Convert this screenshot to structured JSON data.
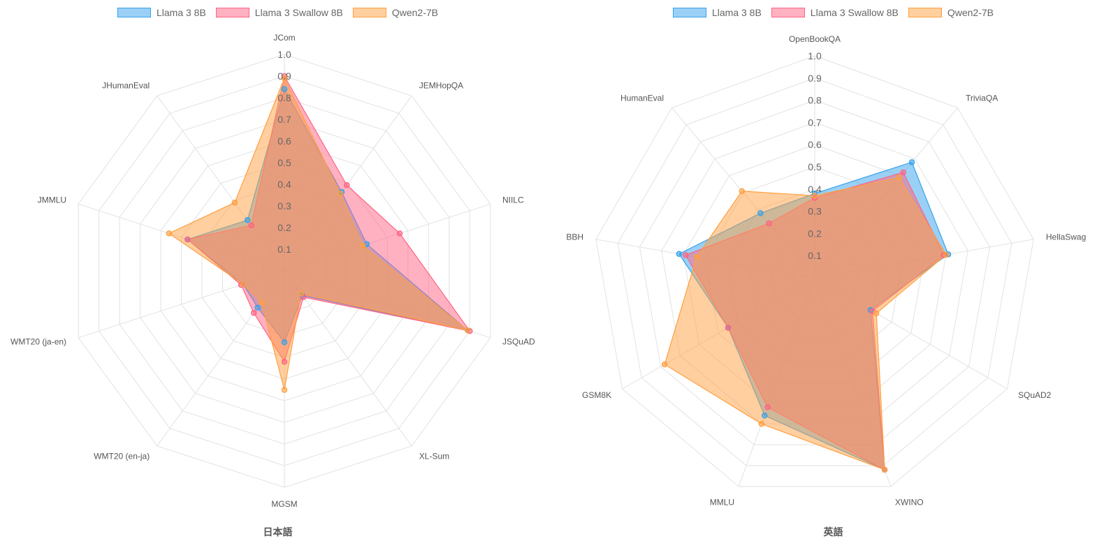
{
  "legend": [
    {
      "name": "Llama 3 8B",
      "fill": "#9ad0f5",
      "stroke": "#36a2eb"
    },
    {
      "name": "Llama 3 Swallow 8B",
      "fill": "#ffb1c1",
      "stroke": "#ff6384"
    },
    {
      "name": "Qwen2-7B",
      "fill": "#ffcf9f",
      "stroke": "#ff9f40"
    }
  ],
  "colors": {
    "llama": {
      "fill": "rgba(54,162,235,0.5)",
      "stroke": "#36a2eb"
    },
    "swallow": {
      "fill": "rgba(255,99,132,0.5)",
      "stroke": "#ff6384"
    },
    "qwen": {
      "fill": "rgba(255,159,64,0.5)",
      "stroke": "#ff9f40"
    },
    "grid": "#e2e2e2"
  },
  "chart_data": [
    {
      "type": "radar",
      "caption": "日本語",
      "r_ticks": [
        "0.1",
        "0.2",
        "0.3",
        "0.4",
        "0.5",
        "0.6",
        "0.7",
        "0.8",
        "0.9",
        "1.0"
      ],
      "rlim": [
        0,
        1.0
      ],
      "categories": [
        "JCom",
        "JEMHopQA",
        "NIILC",
        "JSQuAD",
        "XL-Sum",
        "MGSM",
        "WMT20 (en-ja)",
        "WMT20 (ja-en)",
        "JMMLU",
        "JHumanEval"
      ],
      "series": [
        {
          "name": "Llama 3 8B",
          "key": "llama",
          "values": [
            0.84,
            0.45,
            0.4,
            0.89,
            0.14,
            0.33,
            0.21,
            0.2,
            0.47,
            0.29
          ]
        },
        {
          "name": "Llama 3 Swallow 8B",
          "key": "swallow",
          "values": [
            0.9,
            0.49,
            0.56,
            0.9,
            0.15,
            0.42,
            0.24,
            0.21,
            0.47,
            0.26
          ]
        },
        {
          "name": "Qwen2-7B",
          "key": "qwen",
          "values": [
            0.89,
            0.44,
            0.38,
            0.89,
            0.13,
            0.55,
            0.18,
            0.2,
            0.56,
            0.39
          ]
        }
      ]
    },
    {
      "type": "radar",
      "caption": "英語",
      "r_ticks": [
        "0.1",
        "0.2",
        "0.3",
        "0.4",
        "0.5",
        "0.6",
        "0.7",
        "0.8",
        "0.9",
        "1.0"
      ],
      "rlim": [
        0,
        1.0
      ],
      "categories": [
        "OpenBookQA",
        "TriviaQA",
        "HellaSwag",
        "SQuAD2",
        "XWINO",
        "MMLU",
        "GSM8K",
        "BBH",
        "HumanEval"
      ],
      "series": [
        {
          "name": "Llama 3 8B",
          "key": "llama",
          "values": [
            0.38,
            0.68,
            0.61,
            0.29,
            0.92,
            0.66,
            0.45,
            0.62,
            0.38
          ]
        },
        {
          "name": "Llama 3 Swallow 8B",
          "key": "swallow",
          "values": [
            0.36,
            0.62,
            0.59,
            0.3,
            0.92,
            0.62,
            0.45,
            0.59,
            0.32
          ]
        },
        {
          "name": "Qwen2-7B",
          "key": "qwen",
          "values": [
            0.37,
            0.59,
            0.6,
            0.32,
            0.92,
            0.7,
            0.78,
            0.54,
            0.51
          ]
        }
      ]
    }
  ]
}
